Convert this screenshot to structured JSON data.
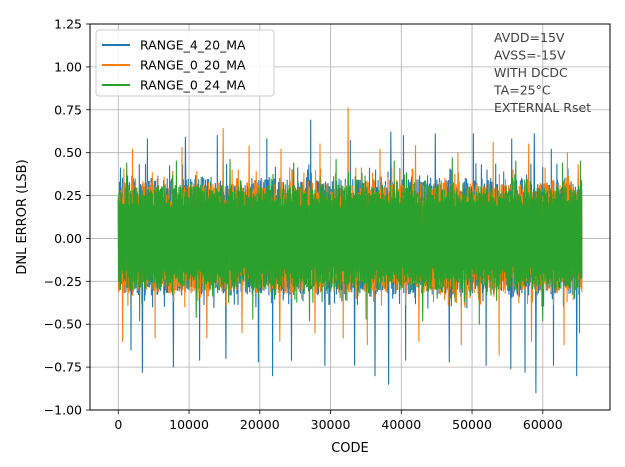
{
  "chart_data": {
    "type": "line",
    "xlabel": "CODE",
    "ylabel": "DNL ERROR (LSB)",
    "xlim": [
      -4000,
      69500
    ],
    "ylim": [
      -1.0,
      1.25
    ],
    "x_ticks": [
      0,
      10000,
      20000,
      30000,
      40000,
      50000,
      60000
    ],
    "y_ticks": [
      -1.0,
      -0.75,
      -0.5,
      -0.25,
      0.0,
      0.25,
      0.5,
      0.75,
      1.0,
      1.25
    ],
    "x_tick_labels": [
      "0",
      "10000",
      "20000",
      "30000",
      "40000",
      "50000",
      "60000"
    ],
    "y_tick_labels": [
      "−1.00",
      "−0.75",
      "−0.50",
      "−0.25",
      "0.00",
      "0.25",
      "0.50",
      "0.75",
      "1.00",
      "1.25"
    ],
    "grid": true,
    "legend_position": "upper-left",
    "x_range": [
      0,
      65535
    ],
    "series": [
      {
        "name": "RANGE_4_20_MA",
        "color": "#1f77b4",
        "core_band": [
          -0.33,
          0.35
        ],
        "peak_spikes": [
          [
            300,
            0.41
          ],
          [
            4100,
            0.58
          ],
          [
            9500,
            0.59
          ],
          [
            14000,
            0.6
          ],
          [
            21000,
            0.58
          ],
          [
            27200,
            0.69
          ],
          [
            32800,
            0.57
          ],
          [
            38500,
            0.62
          ],
          [
            40300,
            0.6
          ],
          [
            44800,
            0.61
          ],
          [
            50200,
            0.61
          ],
          [
            55600,
            0.58
          ],
          [
            58800,
            0.61
          ],
          [
            61200,
            0.52
          ]
        ],
        "trough_spikes": [
          [
            1800,
            -0.65
          ],
          [
            3400,
            -0.78
          ],
          [
            7800,
            -0.75
          ],
          [
            11500,
            -0.71
          ],
          [
            15200,
            -0.7
          ],
          [
            19800,
            -0.72
          ],
          [
            21800,
            -0.8
          ],
          [
            24500,
            -0.71
          ],
          [
            29200,
            -0.74
          ],
          [
            33400,
            -0.74
          ],
          [
            36300,
            -0.8
          ],
          [
            38200,
            -0.85
          ],
          [
            40600,
            -0.71
          ],
          [
            46800,
            -0.72
          ],
          [
            52000,
            -0.74
          ],
          [
            55500,
            -0.76
          ],
          [
            57500,
            -0.78
          ],
          [
            59000,
            -0.9
          ],
          [
            61500,
            -0.74
          ],
          [
            64800,
            -0.8
          ]
        ]
      },
      {
        "name": "RANGE_0_20_MA",
        "color": "#ff7f0e",
        "core_band": [
          -0.32,
          0.33
        ],
        "peak_spikes": [
          [
            2000,
            0.52
          ],
          [
            9000,
            0.53
          ],
          [
            14800,
            0.64
          ],
          [
            18500,
            0.54
          ],
          [
            23000,
            0.52
          ],
          [
            28500,
            0.55
          ],
          [
            32500,
            0.76
          ],
          [
            37000,
            0.52
          ],
          [
            42000,
            0.54
          ],
          [
            48000,
            0.5
          ],
          [
            53000,
            0.56
          ],
          [
            58000,
            0.55
          ],
          [
            63500,
            0.5
          ],
          [
            65000,
            0.43
          ]
        ],
        "trough_spikes": [
          [
            600,
            -0.6
          ],
          [
            5200,
            -0.58
          ],
          [
            12500,
            -0.58
          ],
          [
            17500,
            -0.55
          ],
          [
            22800,
            -0.6
          ],
          [
            27800,
            -0.55
          ],
          [
            31800,
            -0.58
          ],
          [
            35200,
            -0.62
          ],
          [
            42500,
            -0.6
          ],
          [
            48500,
            -0.62
          ],
          [
            53800,
            -0.68
          ],
          [
            58400,
            -0.6
          ],
          [
            63000,
            -0.62
          ]
        ]
      },
      {
        "name": "RANGE_0_24_MA",
        "color": "#2ca02c",
        "core_band": [
          -0.3,
          0.31
        ],
        "peak_spikes": [
          [
            1200,
            0.44
          ],
          [
            8200,
            0.45
          ],
          [
            15800,
            0.46
          ],
          [
            24800,
            0.44
          ],
          [
            30800,
            0.46
          ],
          [
            39000,
            0.45
          ],
          [
            47200,
            0.47
          ],
          [
            56200,
            0.45
          ],
          [
            62800,
            0.44
          ],
          [
            65300,
            0.45
          ]
        ],
        "trough_spikes": [
          [
            3000,
            -0.48
          ],
          [
            11000,
            -0.46
          ],
          [
            19000,
            -0.47
          ],
          [
            27000,
            -0.48
          ],
          [
            35000,
            -0.47
          ],
          [
            43000,
            -0.48
          ],
          [
            51000,
            -0.5
          ],
          [
            60000,
            -0.48
          ],
          [
            65200,
            -0.55
          ]
        ]
      }
    ],
    "annotations": [
      "AVDD=15V",
      "AVSS=-15V",
      "WITH DCDC",
      "TA=25°C",
      "EXTERNAL Rset"
    ]
  }
}
